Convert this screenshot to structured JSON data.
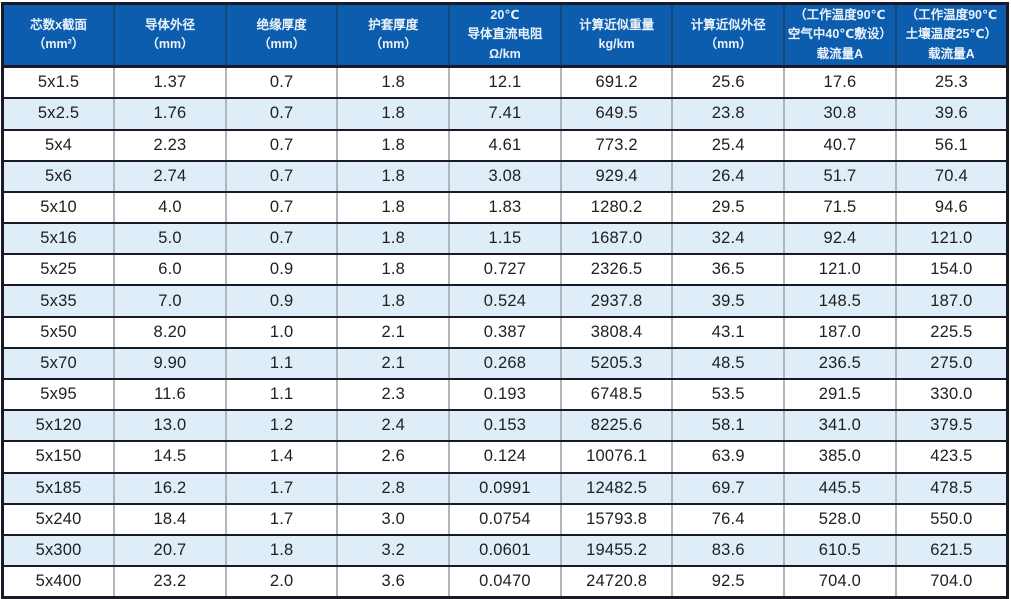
{
  "colors": {
    "header_bg": "#0d5dae",
    "header_text": "#e9f2fb",
    "row_bg": "#ffffff",
    "row_alt_bg": "#deedf8",
    "grid_dark": "#1a1928",
    "grid_gray": "#8e959c",
    "cell_text": "#202020"
  },
  "table": {
    "columns": [
      {
        "id": "core-size",
        "text": "芯数x截面\n（mm²）"
      },
      {
        "id": "conductor-od",
        "text": "导体外径\n（mm）"
      },
      {
        "id": "insulation-thickness",
        "text": "绝缘厚度\n（mm）"
      },
      {
        "id": "sheath-thickness",
        "text": "护套厚度\n（mm）"
      },
      {
        "id": "dc-resistance",
        "text": "20℃\n导体直流电阻\nΩ/km"
      },
      {
        "id": "approx-weight",
        "text": "计算近似重量\nkg/km"
      },
      {
        "id": "approx-od",
        "text": "计算近似外径\n（mm）"
      },
      {
        "id": "ampacity-air",
        "text": "（工作温度90℃\n空气中40℃敷设）\n载流量A"
      },
      {
        "id": "ampacity-soil",
        "text": "（工作温度90℃\n土壤温度25℃）\n载流量A"
      }
    ],
    "rows": [
      [
        "5x1.5",
        "1.37",
        "0.7",
        "1.8",
        "12.1",
        "691.2",
        "25.6",
        "17.6",
        "25.3"
      ],
      [
        "5x2.5",
        "1.76",
        "0.7",
        "1.8",
        "7.41",
        "649.5",
        "23.8",
        "30.8",
        "39.6"
      ],
      [
        "5x4",
        "2.23",
        "0.7",
        "1.8",
        "4.61",
        "773.2",
        "25.4",
        "40.7",
        "56.1"
      ],
      [
        "5x6",
        "2.74",
        "0.7",
        "1.8",
        "3.08",
        "929.4",
        "26.4",
        "51.7",
        "70.4"
      ],
      [
        "5x10",
        "4.0",
        "0.7",
        "1.8",
        "1.83",
        "1280.2",
        "29.5",
        "71.5",
        "94.6"
      ],
      [
        "5x16",
        "5.0",
        "0.7",
        "1.8",
        "1.15",
        "1687.0",
        "32.4",
        "92.4",
        "121.0"
      ],
      [
        "5x25",
        "6.0",
        "0.9",
        "1.8",
        "0.727",
        "2326.5",
        "36.5",
        "121.0",
        "154.0"
      ],
      [
        "5x35",
        "7.0",
        "0.9",
        "1.8",
        "0.524",
        "2937.8",
        "39.5",
        "148.5",
        "187.0"
      ],
      [
        "5x50",
        "8.20",
        "1.0",
        "2.1",
        "0.387",
        "3808.4",
        "43.1",
        "187.0",
        "225.5"
      ],
      [
        "5x70",
        "9.90",
        "1.1",
        "2.1",
        "0.268",
        "5205.3",
        "48.5",
        "236.5",
        "275.0"
      ],
      [
        "5x95",
        "11.6",
        "1.1",
        "2.3",
        "0.193",
        "6748.5",
        "53.5",
        "291.5",
        "330.0"
      ],
      [
        "5x120",
        "13.0",
        "1.2",
        "2.4",
        "0.153",
        "8225.6",
        "58.1",
        "341.0",
        "379.5"
      ],
      [
        "5x150",
        "14.5",
        "1.4",
        "2.6",
        "0.124",
        "10076.1",
        "63.9",
        "385.0",
        "423.5"
      ],
      [
        "5x185",
        "16.2",
        "1.7",
        "2.8",
        "0.0991",
        "12482.5",
        "69.7",
        "445.5",
        "478.5"
      ],
      [
        "5x240",
        "18.4",
        "1.7",
        "3.0",
        "0.0754",
        "15793.8",
        "76.4",
        "528.0",
        "550.0"
      ],
      [
        "5x300",
        "20.7",
        "1.8",
        "3.2",
        "0.0601",
        "19455.2",
        "83.6",
        "610.5",
        "621.5"
      ],
      [
        "5x400",
        "23.2",
        "2.0",
        "3.6",
        "0.0470",
        "24720.8",
        "92.5",
        "704.0",
        "704.0"
      ]
    ]
  }
}
